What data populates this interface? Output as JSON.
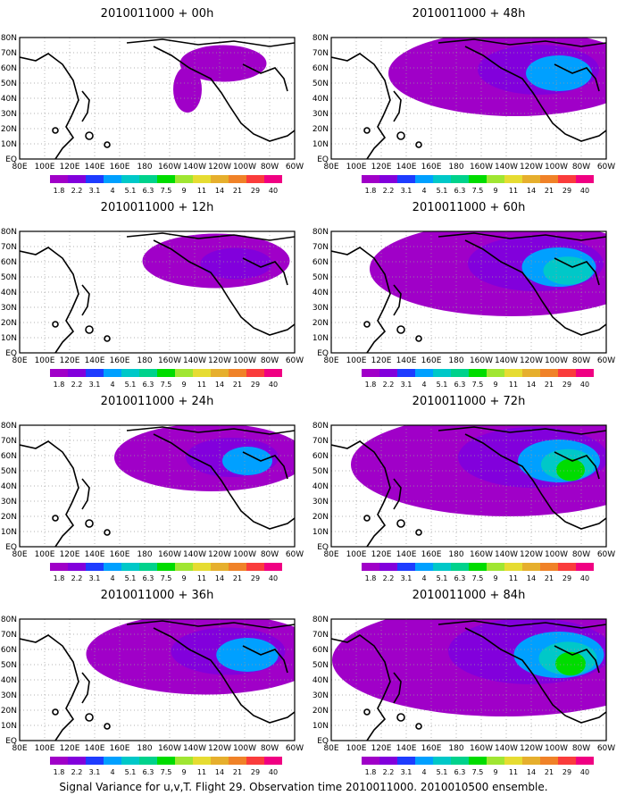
{
  "caption": "Signal Variance for u,v,T. Flight 29. Observation time 2010011000. 2010010500 ensemble.",
  "colorbar": {
    "labels": [
      "1.8",
      "2.2",
      "3.1",
      "4",
      "5.1",
      "6.3",
      "7.5",
      "9",
      "11",
      "14",
      "21",
      "29",
      "40"
    ],
    "colors": [
      "#a000c8",
      "#8200dc",
      "#1e3cff",
      "#00a0ff",
      "#00c8c8",
      "#00d28c",
      "#00dc00",
      "#a0e632",
      "#e6dc32",
      "#e6af2d",
      "#f08228",
      "#fa3c3c",
      "#f00082"
    ]
  },
  "lon_labels": [
    "80E",
    "100E",
    "120E",
    "140E",
    "160E",
    "180",
    "160W",
    "140W",
    "120W",
    "100W",
    "80W",
    "60W"
  ],
  "lat_labels": [
    "80N",
    "70N",
    "60N",
    "50N",
    "40N",
    "30N",
    "20N",
    "10N",
    "EQ"
  ],
  "panels": [
    {
      "title": "2010011000 + 00h",
      "coverage": 0.05
    },
    {
      "title": "2010011000 + 12h",
      "coverage": 0.25
    },
    {
      "title": "2010011000 + 24h",
      "coverage": 0.4
    },
    {
      "title": "2010011000 + 36h",
      "coverage": 0.55
    },
    {
      "title": "2010011000 + 48h",
      "coverage": 0.6
    },
    {
      "title": "2010011000 + 60h",
      "coverage": 0.7
    },
    {
      "title": "2010011000 + 72h",
      "coverage": 0.8
    },
    {
      "title": "2010011000 + 84h",
      "coverage": 0.9
    }
  ]
}
